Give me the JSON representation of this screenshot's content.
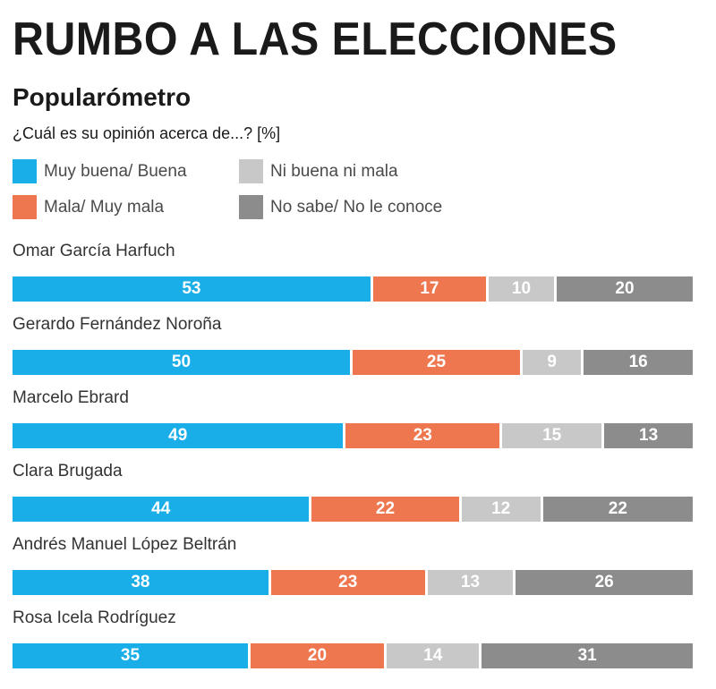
{
  "header": {
    "title": "RUMBO A LAS ELECCIONES",
    "subtitle": "Popularómetro",
    "question": "¿Cuál es su opinión acerca de...? [%]"
  },
  "colors": {
    "good": "#1aaee8",
    "bad": "#ee7750",
    "neutral": "#c8c8c8",
    "unknown": "#8c8c8c"
  },
  "chart_data": {
    "type": "bar",
    "orientation": "horizontal",
    "stacked": true,
    "unit": "%",
    "title": "Popularómetro",
    "categories": [
      "Omar García Harfuch",
      "Gerardo Fernández Noroña",
      "Marcelo Ebrard",
      "Clara Brugada",
      "Andrés Manuel López Beltrán",
      "Rosa Icela Rodríguez"
    ],
    "series": [
      {
        "name": "Muy buena/ Buena",
        "key": "good",
        "values": [
          53,
          50,
          49,
          44,
          38,
          35
        ]
      },
      {
        "name": "Mala/ Muy mala",
        "key": "bad",
        "values": [
          17,
          25,
          23,
          22,
          23,
          20
        ]
      },
      {
        "name": "Ni buena ni mala",
        "key": "neutral",
        "values": [
          10,
          9,
          15,
          12,
          13,
          14
        ]
      },
      {
        "name": "No sabe/ No le conoce",
        "key": "unknown",
        "values": [
          20,
          16,
          13,
          22,
          26,
          31
        ]
      }
    ],
    "legend_order": [
      0,
      2,
      1,
      3
    ],
    "legend_position": "top-left",
    "grid": false,
    "xlim": [
      0,
      100
    ]
  }
}
